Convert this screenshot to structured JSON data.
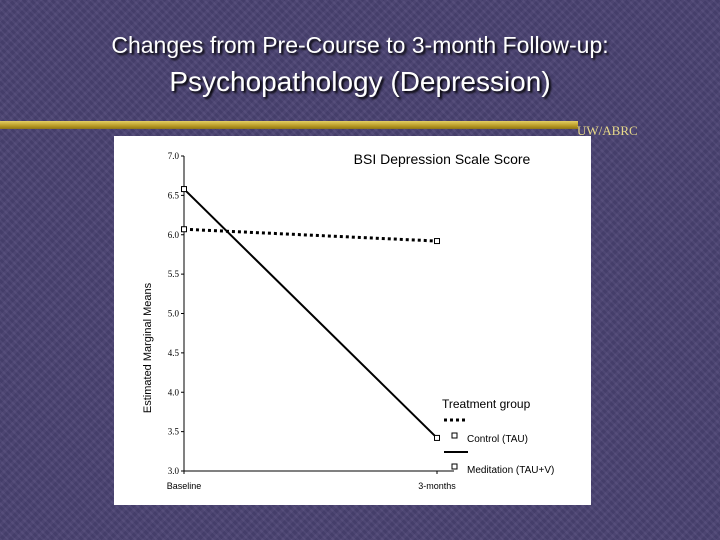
{
  "slide": {
    "title_line1": "Changes from Pre-Course to 3-month Follow-up:",
    "title_line2": "Psychopathology (Depression)",
    "source": "UW/ABRC"
  },
  "chart_data": {
    "type": "line",
    "title": "BSI Depression Scale Score",
    "xlabel": "",
    "ylabel": "Estimated Marginal Means",
    "categories": [
      "Baseline",
      "3-months"
    ],
    "ylim": [
      3.0,
      7.0
    ],
    "yticks": [
      "7.0",
      "6.5",
      "6.0",
      "5.5",
      "5.0",
      "4.5",
      "4.0",
      "3.5",
      "3.0"
    ],
    "legend_title": "Treatment group",
    "legend_position": "bottom-right",
    "series": [
      {
        "name": "Control (TAU)",
        "style": "dotted",
        "values": [
          6.07,
          5.92
        ]
      },
      {
        "name": "Meditation (TAU+V)",
        "style": "solid",
        "values": [
          6.58,
          3.42
        ]
      }
    ],
    "colors": {
      "lines": "#000000",
      "background": "#ffffff"
    }
  }
}
